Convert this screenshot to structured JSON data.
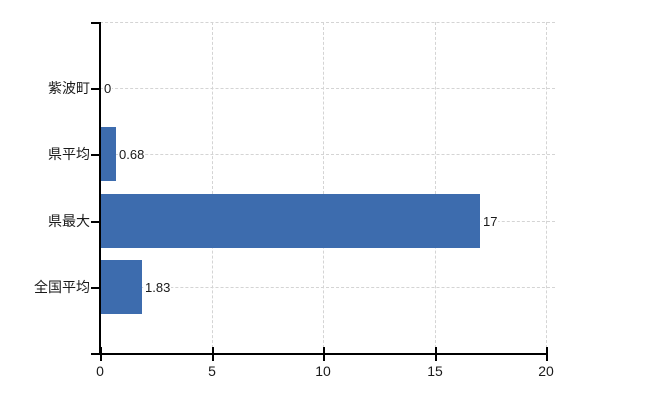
{
  "colors": {
    "bar": "#3d6cae",
    "grid": "#d4d4d4",
    "axis": "#000000",
    "text": "#1a1a1a",
    "background": "#ffffff"
  },
  "chart_data": {
    "type": "bar",
    "orientation": "horizontal",
    "title": "",
    "xlabel": "",
    "ylabel": "",
    "categories": [
      "紫波町",
      "県平均",
      "県最大",
      "全国平均"
    ],
    "values": [
      0,
      0.68,
      17,
      1.83
    ],
    "value_labels": [
      "0",
      "0.68",
      "17",
      "1.83"
    ],
    "x_ticks": [
      0,
      5,
      10,
      15,
      20
    ],
    "x_tick_labels": [
      "0",
      "5",
      "10",
      "15",
      "20"
    ],
    "xlim": [
      0,
      20
    ],
    "grid": true,
    "legend": false
  }
}
